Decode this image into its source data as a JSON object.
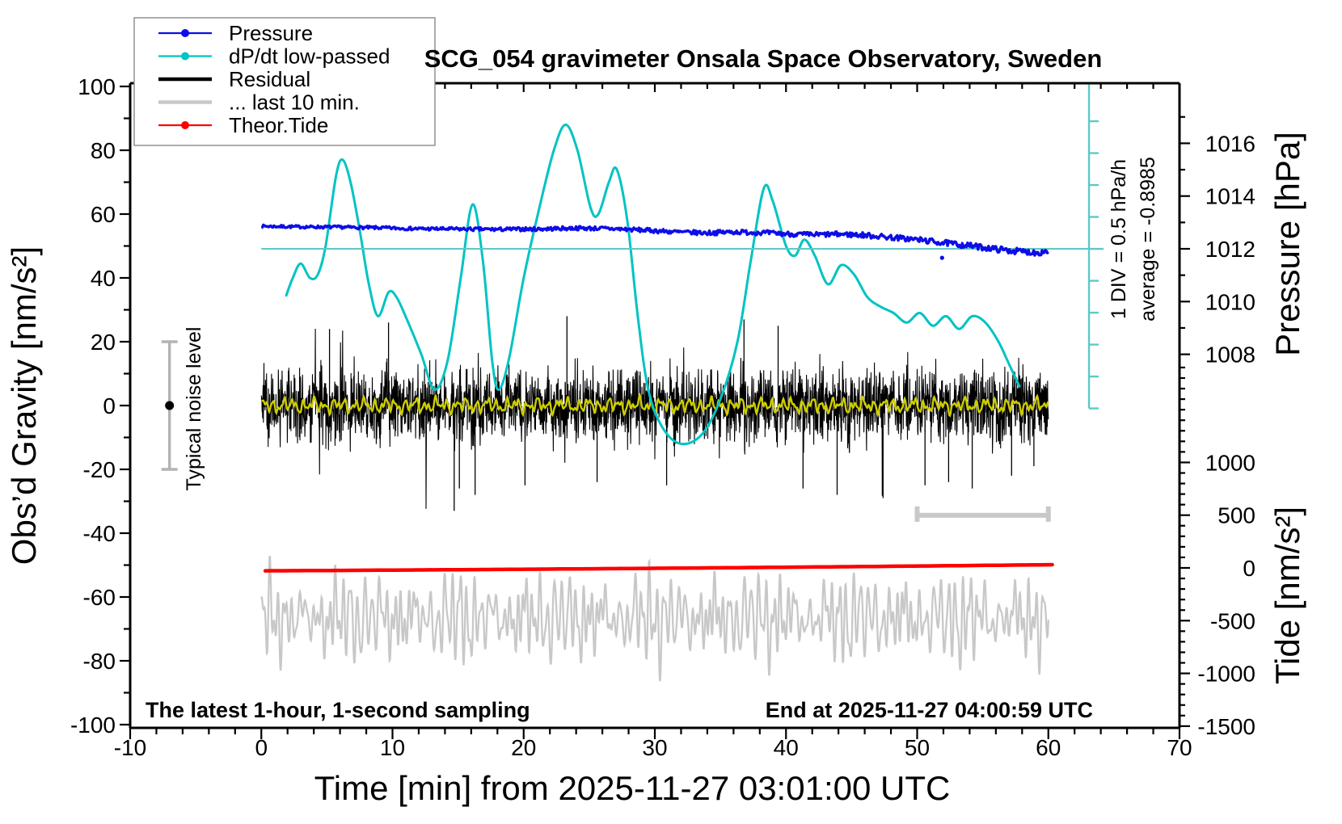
{
  "title": "SCG_054 gravimeter Onsala Space Observatory, Sweden",
  "notes": {
    "sampling": "The latest 1-hour, 1-second sampling",
    "end": "End at 2025-11-27 04:00:59 UTC"
  },
  "annotations": {
    "noise": "Typical noise level",
    "div": "1 DIV = 0.5 hPa/h",
    "average": "average = -0.8985"
  },
  "legend": {
    "position": "top-left",
    "entries": [
      {
        "label": "Pressure",
        "color": "#0d0de8",
        "style": "line-dot"
      },
      {
        "label": "dP/dt low-passed",
        "color": "#00c3c3",
        "style": "line-dot"
      },
      {
        "label": "Residual",
        "color": "#000000",
        "style": "thick-line"
      },
      {
        "label": "... last 10 min.",
        "color": "#c8c8c8",
        "style": "thick-line"
      },
      {
        "label": "Theor.Tide",
        "color": "#ff0000",
        "style": "line-dot"
      }
    ]
  },
  "axes": {
    "x": {
      "label": "Time [min] from 2025-11-27 03:01:00 UTC",
      "min": -10,
      "max": 70,
      "major_ticks": [
        -10,
        0,
        10,
        20,
        30,
        40,
        50,
        60,
        70
      ],
      "minor_step": 2
    },
    "y_left": {
      "label": "Obs’d Gravity [nm/s²]",
      "min": -100,
      "max": 100,
      "major_ticks": [
        100,
        80,
        60,
        40,
        20,
        0,
        -20,
        -40,
        -60,
        -80,
        -100
      ],
      "minor_step": 10
    },
    "y_right_pressure": {
      "label": "Pressure [hPa]",
      "major_ticks": [
        1016,
        1014,
        1012,
        1010,
        1008
      ],
      "minor_step": 1,
      "value_at_zero_line": 1012
    },
    "y_right_tide": {
      "label": "Tide [nm/s²]",
      "major_ticks": [
        1000,
        500,
        0,
        -500,
        -1000,
        -1500
      ],
      "minor_step": 100
    }
  },
  "chart_data": {
    "type": "line",
    "x_range": [
      0,
      60
    ],
    "colors": {
      "pressure": "#0d0de8",
      "dpdt": "#00c3c3",
      "dpdt_zero_line": "#5fc8c8",
      "residual": "#000000",
      "residual_lowpass": "#cdcd00",
      "last10": "#c8c8c8",
      "tide": "#ff0000",
      "noise_bar": "#b4b4b4"
    },
    "series": {
      "pressure_gravity_pts": [
        [
          0,
          56.2
        ],
        [
          3,
          56.0
        ],
        [
          6,
          55.9
        ],
        [
          9,
          55.7
        ],
        [
          12,
          55.4
        ],
        [
          15,
          55.3
        ],
        [
          18,
          55.2
        ],
        [
          21,
          55.3
        ],
        [
          24,
          55.6
        ],
        [
          26,
          55.5
        ],
        [
          28,
          55.2
        ],
        [
          30,
          54.8
        ],
        [
          32,
          54.3
        ],
        [
          34,
          54.1
        ],
        [
          36,
          54.4
        ],
        [
          38,
          54.2
        ],
        [
          40,
          53.8
        ],
        [
          42,
          53.5
        ],
        [
          44,
          53.7
        ],
        [
          46,
          53.4
        ],
        [
          48,
          52.7
        ],
        [
          50,
          52.0
        ],
        [
          52,
          51.0
        ],
        [
          54,
          50.1
        ],
        [
          55.5,
          49.3
        ],
        [
          57,
          48.6
        ],
        [
          58.5,
          48.1
        ],
        [
          59.3,
          47.9
        ],
        [
          59.7,
          48.4
        ],
        [
          60,
          48.2
        ]
      ],
      "pressure_outliers": [
        [
          6.15,
          92.5
        ],
        [
          51.9,
          46.3
        ]
      ],
      "dpdt_pts": [
        [
          1.9,
          34.5
        ],
        [
          2.4,
          40
        ],
        [
          3.0,
          44.5
        ],
        [
          3.7,
          40
        ],
        [
          4.3,
          41
        ],
        [
          4.9,
          50
        ],
        [
          5.7,
          72
        ],
        [
          6.2,
          77
        ],
        [
          6.8,
          70
        ],
        [
          7.5,
          55
        ],
        [
          8.2,
          38
        ],
        [
          8.9,
          28
        ],
        [
          9.7,
          35.5
        ],
        [
          10.3,
          34
        ],
        [
          11.1,
          27
        ],
        [
          12.2,
          16
        ],
        [
          13.2,
          5
        ],
        [
          14.2,
          14
        ],
        [
          15.2,
          40
        ],
        [
          16.1,
          63
        ],
        [
          16.9,
          45
        ],
        [
          17.6,
          14
        ],
        [
          18.1,
          5
        ],
        [
          18.9,
          15
        ],
        [
          20.0,
          40
        ],
        [
          21.2,
          62
        ],
        [
          22.3,
          80
        ],
        [
          23.2,
          88
        ],
        [
          24.1,
          80
        ],
        [
          25.1,
          62
        ],
        [
          25.7,
          60
        ],
        [
          26.5,
          70
        ],
        [
          27.1,
          74
        ],
        [
          27.9,
          58
        ],
        [
          28.7,
          28
        ],
        [
          29.5,
          5
        ],
        [
          30.6,
          -7
        ],
        [
          32.0,
          -12
        ],
        [
          33.6,
          -9
        ],
        [
          35.0,
          2
        ],
        [
          36.3,
          20
        ],
        [
          37.3,
          45
        ],
        [
          38.3,
          68
        ],
        [
          39.0,
          64
        ],
        [
          40.0,
          50
        ],
        [
          40.7,
          47
        ],
        [
          41.4,
          52
        ],
        [
          42.2,
          47
        ],
        [
          43.2,
          38
        ],
        [
          44.2,
          44
        ],
        [
          45.2,
          41
        ],
        [
          46.2,
          34
        ],
        [
          47.2,
          31
        ],
        [
          48.2,
          29
        ],
        [
          49.2,
          26
        ],
        [
          50.2,
          29
        ],
        [
          51.2,
          25
        ],
        [
          52.2,
          28
        ],
        [
          53.2,
          24
        ],
        [
          54.2,
          28
        ],
        [
          55.2,
          26
        ],
        [
          56.2,
          20
        ],
        [
          57.0,
          13
        ],
        [
          57.8,
          6
        ]
      ],
      "theor_tide": {
        "t0": 0.3,
        "t1": 60.3,
        "a": -51.8,
        "b": 0.021,
        "c": 0.00018
      },
      "residual_lowpass_comps": [
        [
          1.2,
          8.1,
          0.5
        ],
        [
          0.9,
          13.7,
          2.1
        ],
        [
          0.5,
          23.0,
          4.0
        ],
        [
          0.7,
          3.3,
          1.0
        ]
      ],
      "residual": {
        "seed": 20251127,
        "sigma": 11,
        "clamp": 33,
        "spikes": [
          [
            5.2,
            24
          ],
          [
            9.7,
            26
          ],
          [
            14.7,
            -33
          ],
          [
            15.1,
            -26
          ],
          [
            16.3,
            -28
          ],
          [
            20.1,
            -25
          ],
          [
            23.3,
            28
          ],
          [
            25.6,
            -24
          ],
          [
            30.9,
            -25
          ],
          [
            36.8,
            27
          ],
          [
            39.4,
            25
          ],
          [
            41.3,
            -26
          ],
          [
            43.9,
            -28
          ],
          [
            47.4,
            -29
          ],
          [
            50.6,
            -25
          ],
          [
            52.4,
            -24
          ],
          [
            54.2,
            -26
          ],
          [
            57.2,
            -22
          ],
          [
            58.9,
            -19
          ]
        ]
      },
      "last10": {
        "base": -66.5,
        "comps": [
          [
            6.5,
            3.5,
            0.83,
            1.7,
            11.3,
            0.3
          ],
          [
            4.0,
            2.5,
            1.31,
            0.4,
            18.9,
            2.2
          ],
          [
            3.2,
            0,
            0,
            0,
            5.2,
            4.1
          ],
          [
            2.0,
            0,
            0,
            0,
            2.2,
            0.9
          ]
        ]
      }
    },
    "noise_bar": {
      "x_min": -7,
      "center_gravity": 0,
      "half_span_gravity": 20
    },
    "last10_bracket": {
      "t0": 50,
      "t1": 60,
      "gravity": -34.4
    },
    "dpdt_scale": {
      "t": 63.1,
      "zero_gravity": 49.1,
      "gravity_per_div": 10,
      "divs_above": 4,
      "divs_below": 5,
      "hpa_per_hour_per_div": 0.5
    }
  }
}
